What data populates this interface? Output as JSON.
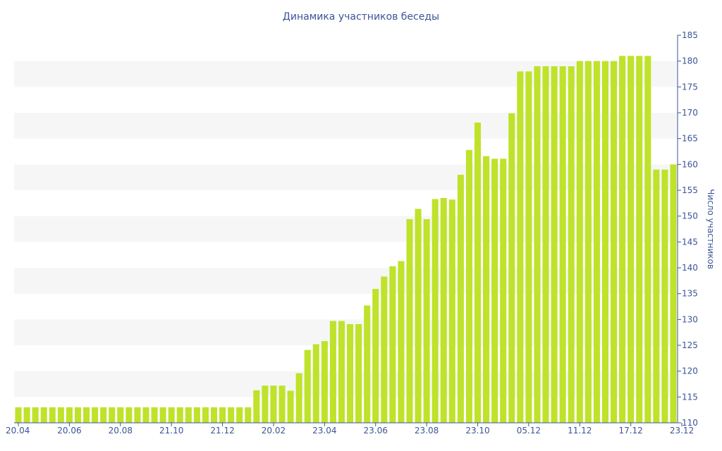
{
  "chart_data": {
    "type": "bar",
    "title": "Динамика участников беседы",
    "xlabel": "",
    "ylabel": "Число участников",
    "ylim": [
      110,
      185
    ],
    "ytick_step": 5,
    "grid": "alternating horizontal bands",
    "y_axis_side": "right",
    "legend": "none",
    "colors": {
      "bar": "#bfe22a",
      "band": "#f6f6f6",
      "text": "#3b5494"
    },
    "x_tick_labels": [
      {
        "label": "20.04",
        "index": 0
      },
      {
        "label": "20.06",
        "index": 6
      },
      {
        "label": "20.08",
        "index": 12
      },
      {
        "label": "21.10",
        "index": 18
      },
      {
        "label": "21.12",
        "index": 24
      },
      {
        "label": "20.02",
        "index": 30
      },
      {
        "label": "23.04",
        "index": 36
      },
      {
        "label": "23.06",
        "index": 42
      },
      {
        "label": "23.08",
        "index": 48
      },
      {
        "label": "23.10",
        "index": 54
      },
      {
        "label": "05.12",
        "index": 60
      },
      {
        "label": "11.12",
        "index": 66
      },
      {
        "label": "17.12",
        "index": 72
      },
      {
        "label": "23.12",
        "index": 78
      }
    ],
    "values": [
      113,
      113,
      113,
      113,
      113,
      113,
      113,
      113,
      113,
      113,
      113,
      113,
      113,
      113,
      113,
      113,
      113,
      113,
      113,
      113,
      113,
      113,
      113,
      113,
      113,
      113,
      113,
      113,
      116.3,
      117.2,
      117.2,
      117.2,
      116.2,
      119.6,
      124.1,
      125.2,
      125.8,
      129.7,
      129.7,
      129.1,
      129.1,
      132.7,
      135.9,
      138.3,
      140.3,
      141.3,
      149.4,
      151.4,
      149.4,
      153.3,
      153.5,
      153.2,
      158.0,
      162.8,
      168.1,
      161.6,
      161.1,
      161.1,
      169.9,
      178.0,
      178.0,
      179.0,
      179.0,
      179.0,
      179.0,
      179.0,
      180.0,
      180.0,
      180.0,
      180.0,
      180.0,
      181.0,
      181.0,
      181.0,
      181.0,
      159.0,
      159.0,
      160.0
    ]
  }
}
